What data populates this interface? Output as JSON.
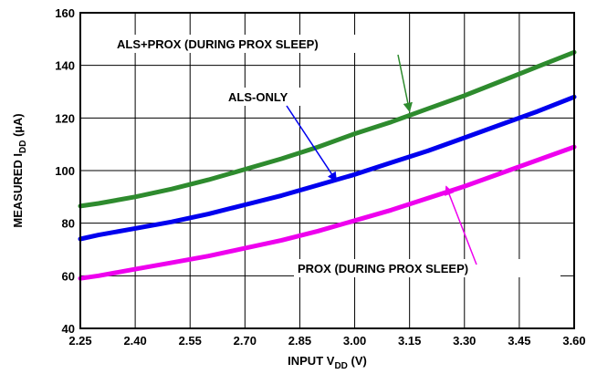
{
  "chart_data": {
    "type": "line",
    "title": "",
    "xlabel": {
      "main": "INPUT V",
      "sub": "DD",
      "unit": " (V)"
    },
    "ylabel": {
      "main": "MEASURED I",
      "sub": "DD",
      "unit": " (µA)"
    },
    "xlim": [
      2.25,
      3.6
    ],
    "ylim": [
      40,
      160
    ],
    "xticks": [
      2.25,
      2.4,
      2.55,
      2.7,
      2.85,
      3.0,
      3.15,
      3.3,
      3.45,
      3.6
    ],
    "xtick_labels": [
      "2.25",
      "2.40",
      "2.55",
      "2.70",
      "2.85",
      "3.00",
      "3.15",
      "3.30",
      "3.45",
      "3.60"
    ],
    "yticks": [
      40,
      60,
      80,
      100,
      120,
      140,
      160
    ],
    "ytick_labels": [
      "40",
      "60",
      "80",
      "100",
      "120",
      "140",
      "160"
    ],
    "grid": true,
    "series": [
      {
        "name": "ALS+PROX (DURING PROX SLEEP)",
        "color": "#2e8b2e",
        "x": [
          2.25,
          2.3,
          2.4,
          2.5,
          2.6,
          2.7,
          2.8,
          2.9,
          3.0,
          3.1,
          3.2,
          3.3,
          3.4,
          3.5,
          3.6
        ],
        "y": [
          86.5,
          87.5,
          90,
          93,
          96.5,
          100.5,
          104.5,
          109,
          114,
          118.5,
          123.5,
          128.5,
          134,
          139.5,
          145
        ]
      },
      {
        "name": "ALS-ONLY",
        "color": "#0000ee",
        "x": [
          2.25,
          2.3,
          2.4,
          2.5,
          2.6,
          2.7,
          2.8,
          2.9,
          3.0,
          3.1,
          3.2,
          3.3,
          3.4,
          3.5,
          3.6
        ],
        "y": [
          74,
          75.5,
          78,
          80.5,
          83.5,
          87,
          90.5,
          94.5,
          98.5,
          103,
          107.5,
          112.5,
          117.5,
          122.5,
          128
        ]
      },
      {
        "name": "PROX (DURING PROX SLEEP)",
        "color": "#ee00ee",
        "x": [
          2.25,
          2.3,
          2.4,
          2.5,
          2.6,
          2.7,
          2.8,
          2.9,
          3.0,
          3.1,
          3.2,
          3.3,
          3.4,
          3.5,
          3.6
        ],
        "y": [
          59,
          60,
          62.5,
          65,
          67.5,
          70.5,
          73.5,
          77,
          81,
          85,
          89.5,
          94,
          99,
          104,
          109
        ]
      }
    ],
    "annotations": [
      {
        "text": "ALS+PROX (DURING PROX SLEEP)",
        "series": 0,
        "arrow_to": [
          3.15,
          122.5
        ]
      },
      {
        "text": "ALS-ONLY",
        "series": 1,
        "arrow_to": [
          2.95,
          96
        ]
      },
      {
        "text": "PROX (DURING PROX SLEEP)",
        "series": 2,
        "arrow_to": [
          3.25,
          94
        ]
      }
    ]
  }
}
